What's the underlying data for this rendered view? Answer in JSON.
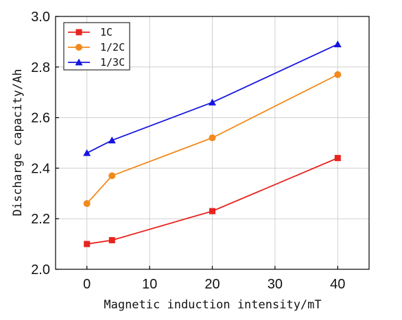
{
  "chart_data": {
    "type": "line",
    "xlabel": "Magnetic induction intensity/mT",
    "ylabel": "Discharge capacity/Ah",
    "xlim": [
      -5,
      45
    ],
    "ylim": [
      2.0,
      3.0
    ],
    "xticks": [
      0,
      10,
      20,
      30,
      40
    ],
    "yticks": [
      2.0,
      2.2,
      2.4,
      2.6,
      2.8,
      3.0
    ],
    "xtick_labels": [
      "0",
      "10",
      "20",
      "30",
      "40"
    ],
    "ytick_labels": [
      "2.0",
      "2.2",
      "2.4",
      "2.6",
      "2.8",
      "3.0"
    ],
    "grid": true,
    "legend_position": "top-left",
    "series": [
      {
        "name": "1C",
        "color": "#e8231f",
        "marker": "square",
        "x": [
          0,
          4,
          20,
          40
        ],
        "y": [
          2.1,
          2.115,
          2.23,
          2.44
        ]
      },
      {
        "name": "1/2C",
        "color": "#f28a1c",
        "marker": "circle",
        "x": [
          0,
          4,
          20,
          40
        ],
        "y": [
          2.26,
          2.37,
          2.52,
          2.77
        ]
      },
      {
        "name": "1/3C",
        "color": "#1515e0",
        "marker": "triangle",
        "x": [
          0,
          4,
          20,
          40
        ],
        "y": [
          2.46,
          2.51,
          2.66,
          2.89
        ]
      }
    ]
  }
}
